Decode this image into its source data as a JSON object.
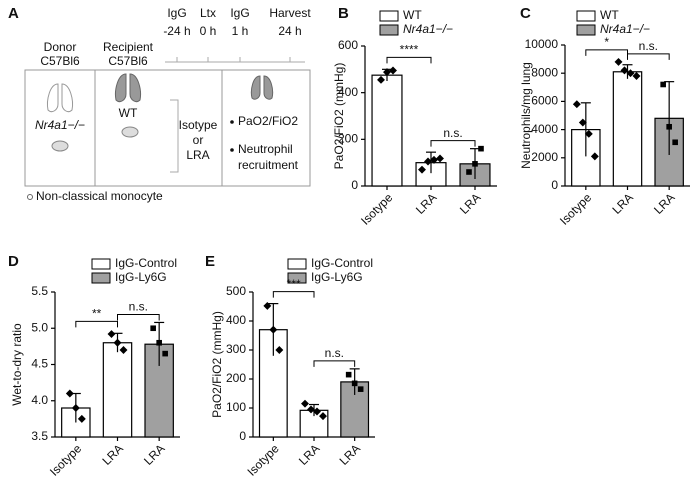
{
  "panel_a": {
    "label": "A",
    "donor": "Donor",
    "donor_strain": "C57Bl6",
    "donor_genotype": "Nr4a1−/−",
    "recipient": "Recipient",
    "recipient_strain": "C57Bl6",
    "recipient_genotype": "WT",
    "treatment": [
      "Isotype",
      "or",
      "LRA"
    ],
    "timeline": [
      {
        "agent": "IgG",
        "time": "-24 h"
      },
      {
        "agent": "Ltx",
        "time": "0 h"
      },
      {
        "agent": "IgG",
        "time": "1 h"
      },
      {
        "agent": "Harvest",
        "time": "24 h"
      }
    ],
    "readouts": [
      "PaO2/FiO2",
      "Neutrophil",
      "recruitment"
    ],
    "legend": "Non-classical monocyte"
  },
  "chart_data": [
    {
      "type": "bar",
      "panel": "B",
      "ylabel": "PaO2/FiO2 (mmHg)",
      "categories": [
        "Isotype",
        "LRA",
        "LRA"
      ],
      "series": [
        {
          "name": "WT",
          "color": "#ffffff",
          "values": [
            475,
            100,
            null
          ],
          "errors": [
            25,
            45,
            null
          ],
          "points": [
            [
              455,
              488,
              495
            ],
            [
              70,
              105,
              112,
              118
            ],
            null
          ]
        },
        {
          "name": "Nr4a1−/−",
          "color": "#a0a0a0",
          "font_style": "italic",
          "values": [
            null,
            null,
            95
          ],
          "errors": [
            null,
            null,
            65
          ],
          "points": [
            null,
            null,
            [
              60,
              95,
              160
            ]
          ]
        }
      ],
      "ylim": [
        0,
        600
      ],
      "yticks": [
        0,
        200,
        400,
        600
      ],
      "annotations": [
        "****",
        "n.s."
      ]
    },
    {
      "type": "bar",
      "panel": "C",
      "ylabel": "Neutrophils/mg lung",
      "categories": [
        "Isotype",
        "LRA",
        "LRA"
      ],
      "series": [
        {
          "name": "WT",
          "color": "#ffffff",
          "values": [
            4000,
            8100,
            null
          ],
          "errors": [
            1900,
            500,
            null
          ],
          "points": [
            [
              5800,
              4500,
              3700,
              2100
            ],
            [
              8800,
              8200,
              8000,
              7800
            ],
            null
          ]
        },
        {
          "name": "Nr4a1−/−",
          "color": "#a0a0a0",
          "font_style": "italic",
          "values": [
            null,
            null,
            4800
          ],
          "errors": [
            null,
            null,
            2600
          ],
          "points": [
            null,
            null,
            [
              7200,
              4200,
              3100
            ]
          ]
        }
      ],
      "ylim": [
        0,
        10000
      ],
      "yticks": [
        0,
        2000,
        4000,
        6000,
        8000,
        10000
      ],
      "annotations": [
        "*",
        "n.s."
      ]
    },
    {
      "type": "bar",
      "panel": "D",
      "ylabel": "Wet-to-dry ratio",
      "categories": [
        "Isotype",
        "LRA",
        "LRA"
      ],
      "series": [
        {
          "name": "IgG-Control",
          "color": "#ffffff",
          "values": [
            3.9,
            4.8,
            null
          ],
          "errors": [
            0.2,
            0.13,
            null
          ],
          "points": [
            [
              4.1,
              3.9,
              3.75
            ],
            [
              4.92,
              4.8,
              4.7
            ],
            null
          ]
        },
        {
          "name": "IgG-Ly6G",
          "color": "#a0a0a0",
          "values": [
            null,
            null,
            4.78
          ],
          "errors": [
            null,
            null,
            0.3
          ],
          "points": [
            null,
            null,
            [
              5.0,
              4.8,
              4.65
            ]
          ]
        }
      ],
      "ylim": [
        3.5,
        5.5
      ],
      "yticks": [
        3.5,
        {
          "value": 4,
          "label": "4.0"
        },
        4.5,
        {
          "value": 5,
          "label": "5.0"
        },
        5.5
      ],
      "annotations": [
        "**",
        "n.s."
      ]
    },
    {
      "type": "bar",
      "panel": "E",
      "ylabel": "PaO2/FiO2 (mmHg)",
      "categories": [
        "Isotype",
        "LRA",
        "LRA"
      ],
      "series": [
        {
          "name": "IgG-Control",
          "color": "#ffffff",
          "values": [
            370,
            92,
            null
          ],
          "errors": [
            90,
            20,
            null
          ],
          "points": [
            [
              452,
              370,
              300
            ],
            [
              115,
              95,
              88,
              72
            ],
            null
          ]
        },
        {
          "name": "IgG-Ly6G",
          "color": "#a0a0a0",
          "values": [
            null,
            null,
            190
          ],
          "errors": [
            null,
            null,
            45
          ],
          "points": [
            null,
            null,
            [
              215,
              185,
              165
            ]
          ]
        }
      ],
      "ylim": [
        0,
        500
      ],
      "yticks": [
        0,
        100,
        200,
        300,
        400,
        500
      ],
      "annotations": [
        "***",
        "n.s."
      ]
    }
  ]
}
